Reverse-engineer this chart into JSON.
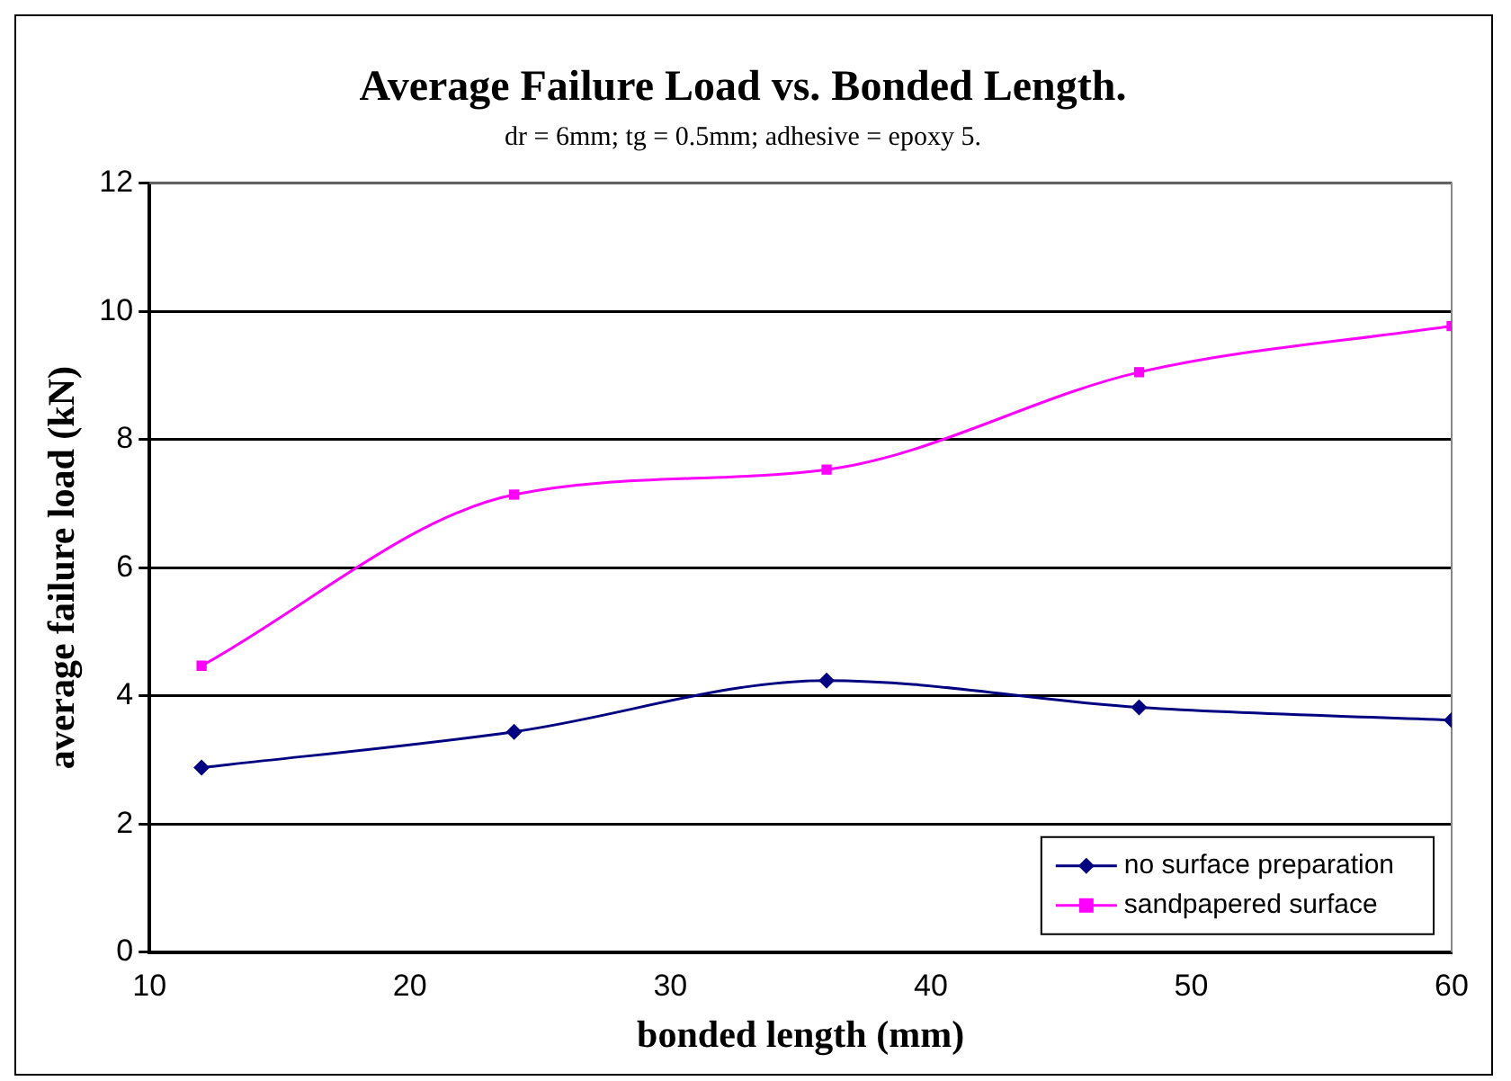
{
  "chart_data": {
    "type": "line",
    "title": "Average Failure Load vs. Bonded Length.",
    "subtitle": "dr = 6mm; tg = 0.5mm; adhesive = epoxy 5.",
    "xlabel": "bonded length (mm)",
    "ylabel": "average failure load (kN)",
    "x": [
      12,
      24,
      36,
      48,
      60
    ],
    "series": [
      {
        "name": "no surface preparation",
        "color": "#000080",
        "marker": "diamond",
        "values": [
          2.88,
          3.44,
          4.24,
          3.82,
          3.62
        ]
      },
      {
        "name": "sandpapered surface",
        "color": "#ff00ff",
        "marker": "square",
        "values": [
          4.47,
          7.14,
          7.53,
          9.05,
          9.77
        ]
      }
    ],
    "xlim": [
      10,
      60
    ],
    "xticks": [
      10,
      20,
      30,
      40,
      50,
      60
    ],
    "ylim": [
      0,
      12
    ],
    "yticks": [
      0,
      2,
      4,
      6,
      8,
      10,
      12
    ],
    "grid": "y",
    "legend": "bottom right",
    "line_style": "solid"
  }
}
